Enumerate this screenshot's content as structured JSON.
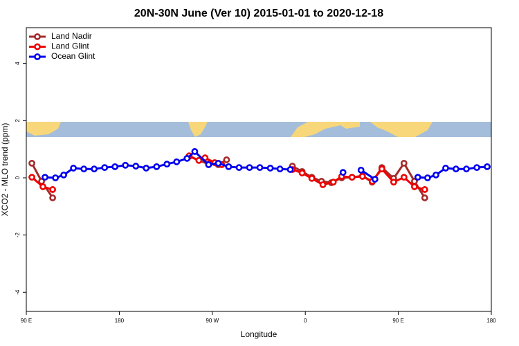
{
  "chart_data": {
    "type": "line",
    "title": "20N-30N June (Ver 10)   2015-01-01 to 2020-12-18",
    "x_label": "Longitude",
    "y_label": "XCO2 - MLO trend (ppm)",
    "xlim": [
      90,
      540
    ],
    "ylim": [
      -4.67,
      5.25
    ],
    "xticks": [
      {
        "value": 90,
        "label": "90 E"
      },
      180,
      {
        "value": 270,
        "label": "90 W"
      },
      {
        "value": 360,
        "label": "0"
      },
      {
        "value": 450,
        "label": "90 E"
      },
      {
        "value": 540,
        "label": "180"
      }
    ],
    "yticks": [
      -4,
      -2,
      0,
      2,
      4
    ],
    "legend": "top-left",
    "series": [
      {
        "name": "Land Nadir",
        "color": "#a52a2a",
        "x": [
          95.4,
          104.8,
          115.5,
          null,
          247.6,
          257.0,
          266.4,
          275.8,
          283.8,
          null,
          347.5,
          356.9,
          366.3,
          375.7,
          385.1,
          395.2,
          405.2,
          415.3,
          424.7,
          434.1,
          445.5,
          455.5,
          465.6,
          475.6
        ],
        "values": [
          0.51,
          -0.12,
          -0.7,
          null,
          0.75,
          0.61,
          0.48,
          0.46,
          0.63,
          null,
          0.41,
          0.22,
          0.02,
          -0.12,
          -0.17,
          0.0,
          0.02,
          0.07,
          -0.15,
          0.36,
          -0.02,
          0.51,
          -0.12,
          -0.7
        ]
      },
      {
        "name": "Land Glint",
        "color": "#ee0000",
        "x": [
          95.4,
          106.1,
          115.5,
          null,
          247.6,
          257.0,
          263.0,
          272.4,
          279.1,
          null,
          347.5,
          356.9,
          366.3,
          377.0,
          387.1,
          395.2,
          405.2,
          415.3,
          424.7,
          434.1,
          445.5,
          455.5,
          465.6,
          475.6
        ],
        "values": [
          0.02,
          -0.31,
          -0.41,
          null,
          0.77,
          0.61,
          0.7,
          0.53,
          0.46,
          null,
          0.29,
          0.17,
          -0.02,
          -0.24,
          -0.15,
          0.05,
          0.02,
          0.05,
          -0.12,
          0.31,
          -0.15,
          0.02,
          -0.31,
          -0.41
        ]
      },
      {
        "name": "Ocean Glint",
        "color": "#0000ee",
        "x": [
          108.1,
          118.2,
          126.2,
          135.6,
          145.7,
          155.7,
          165.8,
          175.8,
          185.9,
          196.0,
          206.0,
          216.1,
          226.1,
          235.5,
          245.6,
          253.0,
          266.4,
          275.8,
          285.8,
          295.9,
          306.0,
          316.0,
          326.1,
          335.5,
          345.5,
          null,
          396.5,
          null,
          413.9,
          427.4,
          null,
          468.9,
          478.3,
          486.4,
          495.8,
          505.8,
          515.9,
          526.0,
          536.0
        ],
        "values": [
          0.02,
          0.0,
          0.1,
          0.34,
          0.31,
          0.31,
          0.36,
          0.39,
          0.44,
          0.41,
          0.34,
          0.39,
          0.48,
          0.56,
          0.68,
          0.92,
          0.46,
          0.51,
          0.39,
          0.36,
          0.36,
          0.36,
          0.34,
          0.31,
          0.29,
          null,
          0.19,
          null,
          0.27,
          -0.05,
          null,
          0.02,
          0.0,
          0.1,
          0.34,
          0.31,
          0.31,
          0.36,
          0.39
        ]
      }
    ]
  }
}
